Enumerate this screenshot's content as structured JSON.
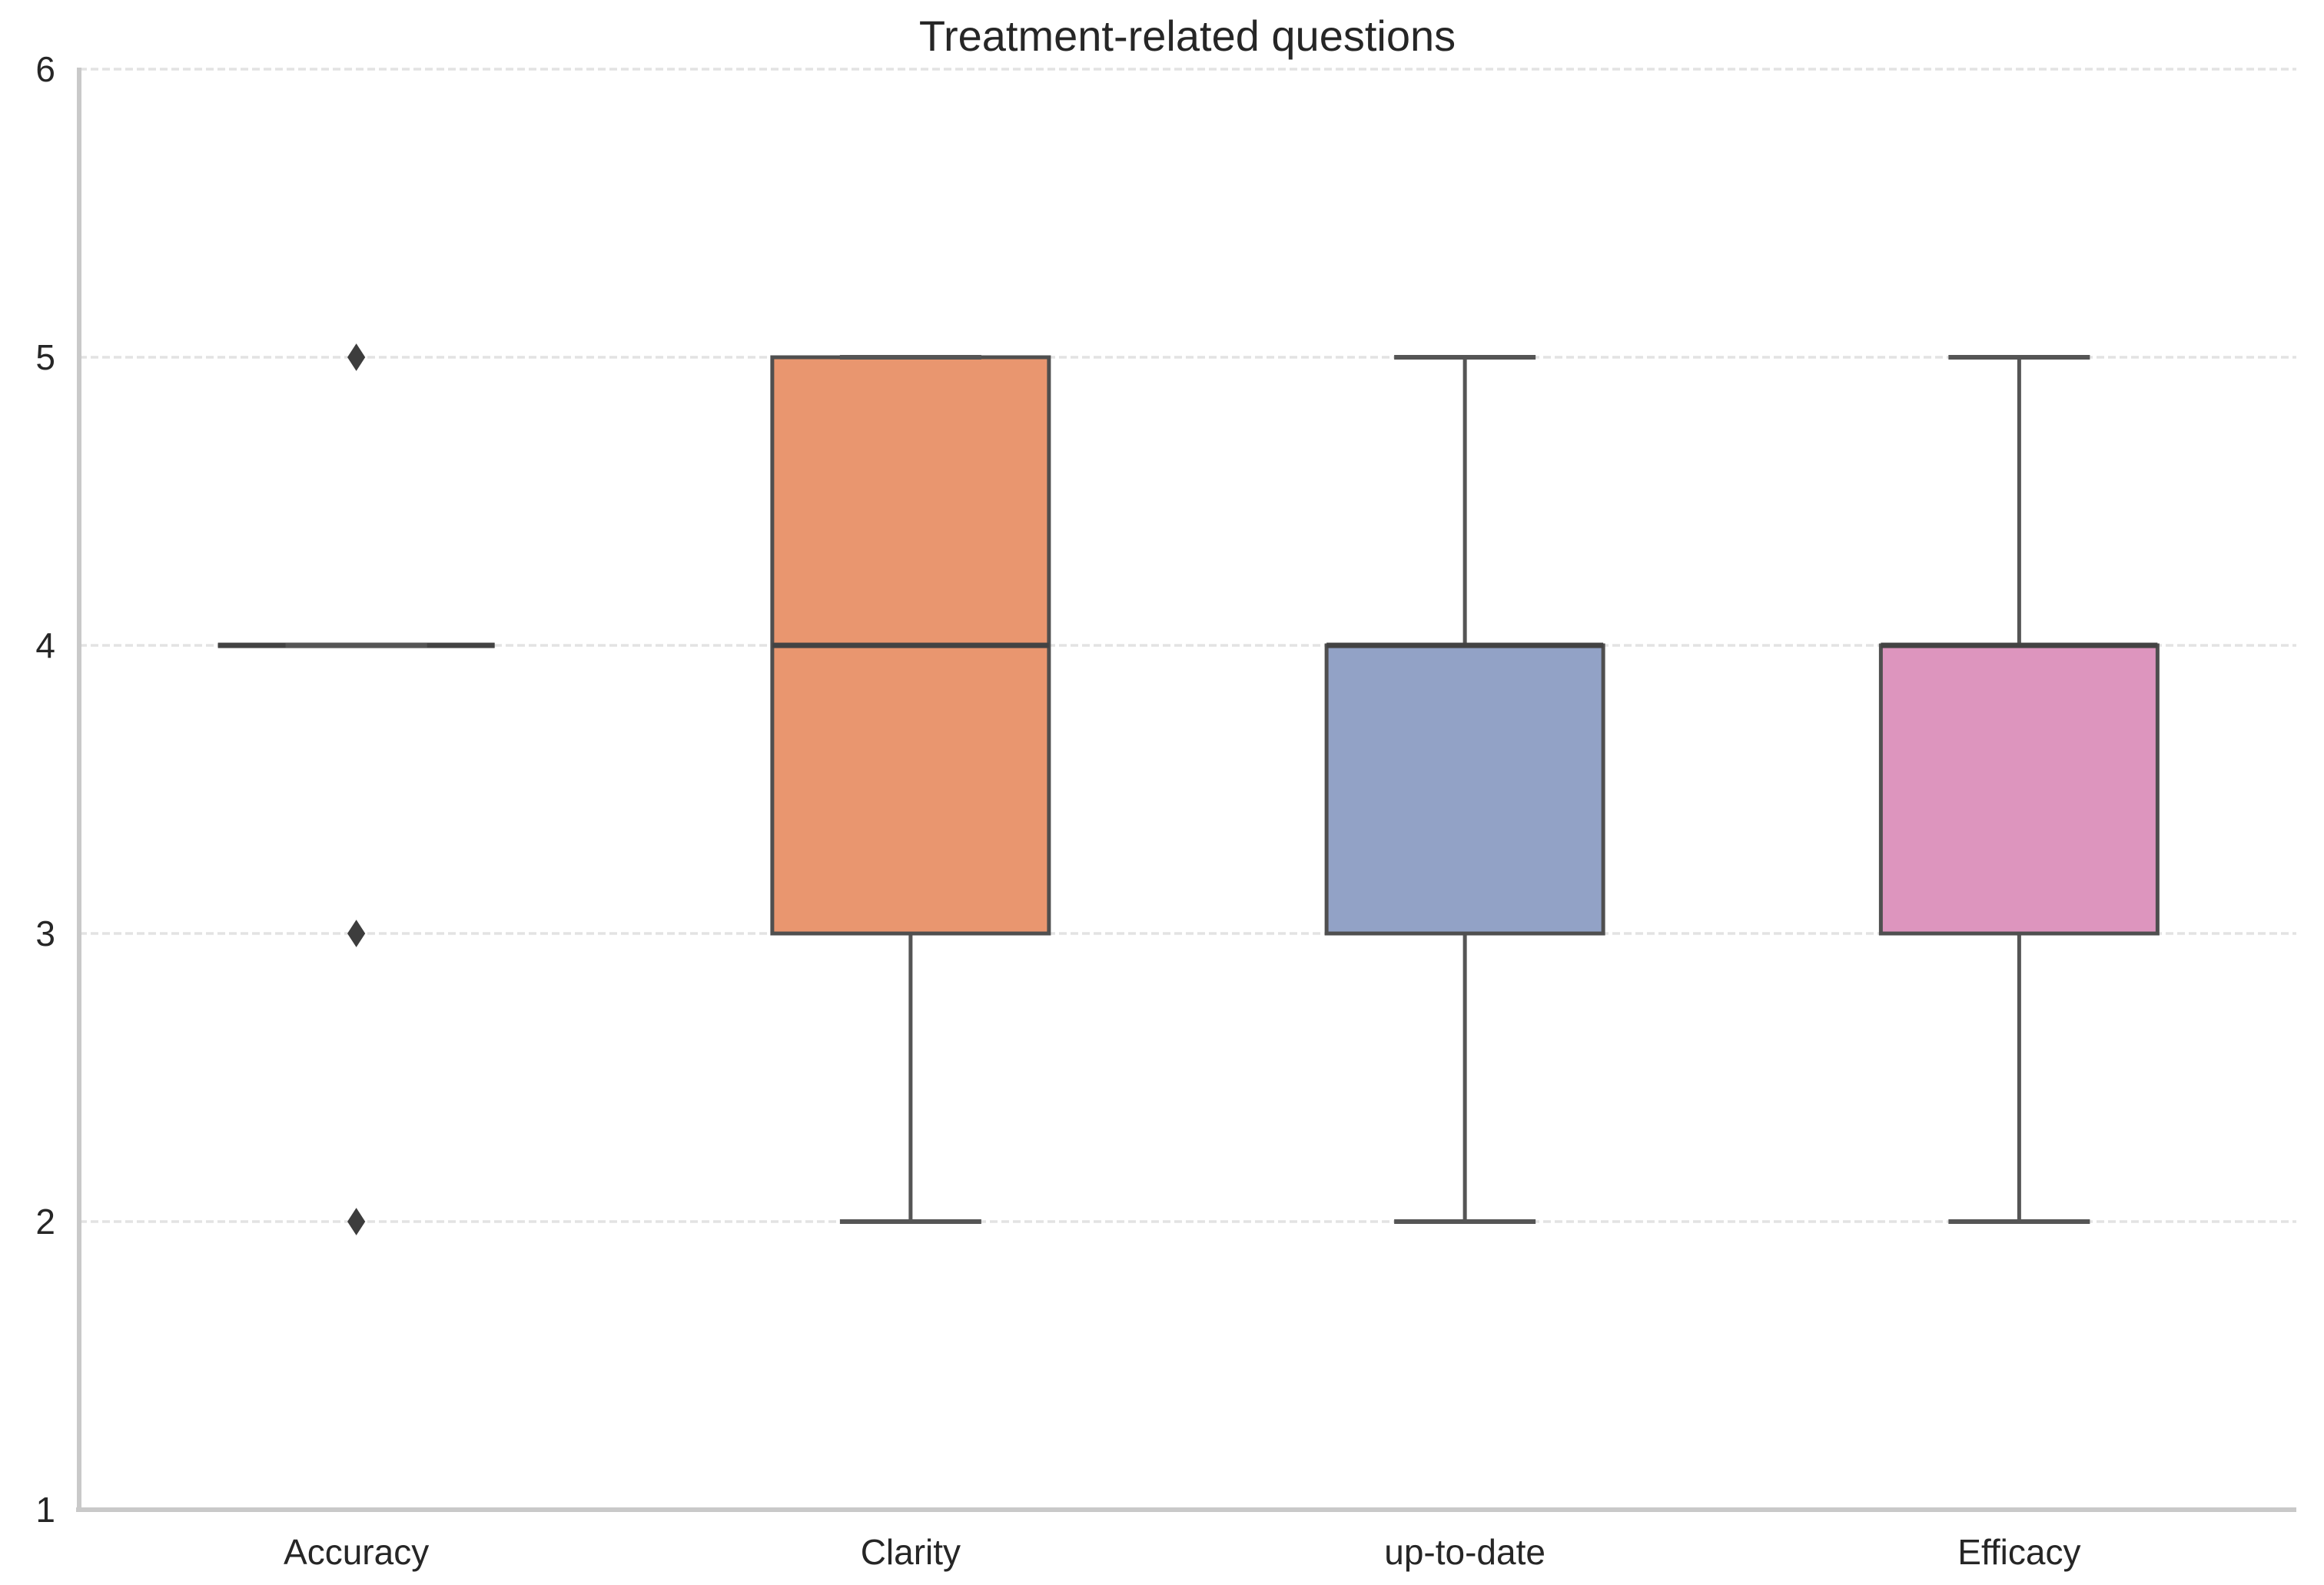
{
  "chart_data": {
    "type": "box",
    "title": "Treatment-related questions",
    "xlabel": "",
    "ylabel": "",
    "ylim": [
      1,
      6
    ],
    "yticks": [
      6,
      5,
      4,
      3,
      2,
      1
    ],
    "grid": "horizontal-dashed",
    "legend": "none",
    "categories": [
      "Accuracy",
      "Clarity",
      "up-to-date",
      "Efficacy"
    ],
    "series": [
      {
        "label": "Accuracy",
        "q1": 4,
        "median": 4,
        "q3": 4,
        "whisker_low": 4,
        "whisker_high": 4,
        "outliers": [
          5,
          3,
          2
        ],
        "fill": null
      },
      {
        "label": "Clarity",
        "q1": 3,
        "median": 4,
        "q3": 5,
        "whisker_low": 2,
        "whisker_high": 5,
        "outliers": [],
        "fill": "#e9966f"
      },
      {
        "label": "up-to-date",
        "q1": 3,
        "median": 4,
        "q3": 4,
        "whisker_low": 2,
        "whisker_high": 5,
        "outliers": [],
        "fill": "#92a2c6"
      },
      {
        "label": "Efficacy",
        "q1": 3,
        "median": 4,
        "q3": 4,
        "whisker_low": 2,
        "whisker_high": 5,
        "outliers": [],
        "fill": "#dd95be"
      }
    ],
    "colors": {
      "box_edge": "#4f4f4f",
      "median_line": "#434343",
      "whisker": "#555555",
      "outlier_marker": "#3d3d3d",
      "gridline": "#e3e3e3",
      "axis_spine": "#c9c9c9",
      "text": "#262626",
      "background": "#ffffff"
    },
    "marker": "diamond"
  }
}
